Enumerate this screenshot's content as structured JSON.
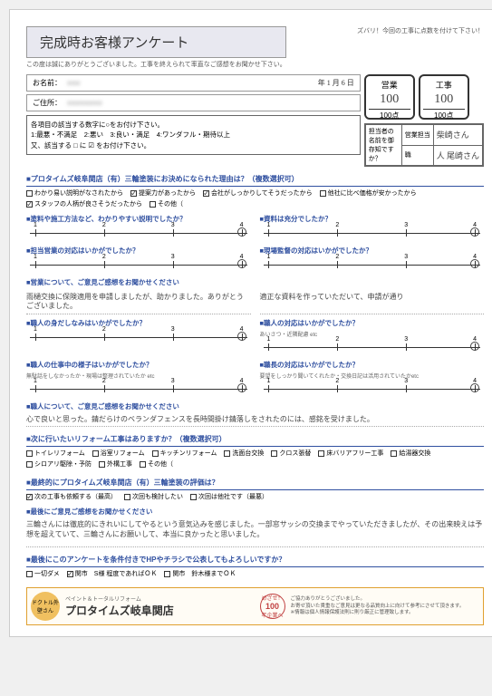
{
  "title": "完成時お客様アンケート",
  "subtitle": "この度は誠にありがとうございました。工事を終えられて率直なご感想をお聞かせ下さい。",
  "score_note": "ズバリ！今回の工事に点数を付けて下さい！",
  "name_label": "お名前：",
  "name_value": "●●●",
  "date_value": "年 1 月 6 日",
  "address_label": "ご住所：",
  "address_value": "●●●●●●●●",
  "score_sales": {
    "label": "営業",
    "score": "100",
    "denom": "100点"
  },
  "score_work": {
    "label": "工事",
    "score": "100",
    "denom": "100点"
  },
  "staff": {
    "header": "担当者の名前を御存知ですか？",
    "sales_label": "営業担当",
    "sales_name": "柴崎さん",
    "work_label": "職",
    "work_name": "人 尾崎さん"
  },
  "instructions": "各項目の該当する数字に○をお付け下さい。\n1:最悪・不満足　2:悪い　3:良い・満足　4:ワンダフル・期待以上\n又、該当する □ に ☑ をお付け下さい。",
  "q1": {
    "title": "■プロタイムズ岐阜関店（有）三輪塗装にお決めになられた理由は？（複数選択可）",
    "options": [
      {
        "text": "わかり易い説明がなされたから",
        "checked": false
      },
      {
        "text": "提案力があったから",
        "checked": true
      },
      {
        "text": "会社がしっかりしてそうだったから",
        "checked": true
      },
      {
        "text": "他社に比べ価格が安かったから",
        "checked": false
      },
      {
        "text": "スタッフの人柄が良さそうだったから",
        "checked": true
      },
      {
        "text": "その他（",
        "checked": false
      }
    ]
  },
  "scales": {
    "q2": {
      "title": "■塗料や施工方法など、わかりやすい説明でしたか？",
      "mark": 4
    },
    "q3": {
      "title": "■資料は充分でしたか？",
      "mark": 4
    },
    "q4": {
      "title": "■担当営業の対応はいかがでしたか？",
      "mark": 4
    },
    "q5": {
      "title": "■現場監督の対応はいかがでしたか？",
      "mark": 4
    },
    "q6": {
      "title": "■職人の身だしなみはいかがでしたか？",
      "mark": 4
    },
    "q7": {
      "title": "■職人の対応はいかがでしたか？",
      "sub": "あいさつ・近隣配慮 etc",
      "mark": 4
    },
    "q8": {
      "title": "■職人の仕事中の様子はいかがでしたか？",
      "sub": "無駄話をしなかったか・現場は整理されていたか etc",
      "mark": 4
    },
    "q9": {
      "title": "■職長の対応はいかがでしたか？",
      "sub": "要望をしっかり聞いてくれたか・交換日記は活用されていたかetc",
      "mark": 4
    }
  },
  "comment_sales": {
    "label": "■営業について、ご意見ご感想をお聞かせください",
    "left": "雨樋交換に保険適用を申請しましたが、助かりました。ありがとうございました。",
    "right": "適正な資料を作っていただいて、申請が通り"
  },
  "comment_worker": {
    "label": "■職人について、ご意見ご感想をお聞かせください",
    "text": "心で良いと思った。錆だらけのベランダフェンスを長時間掛け錆落しをされたのには、感銘を受けました。"
  },
  "q_reform": {
    "title": "■次に行いたいリフォーム工事はありますか？（複数選択可）",
    "options": [
      {
        "text": "トイレリフォーム"
      },
      {
        "text": "浴室リフォーム"
      },
      {
        "text": "キッチンリフォーム"
      },
      {
        "text": "洗面台交換"
      },
      {
        "text": "クロス張替"
      },
      {
        "text": "床バリアフリー工事"
      },
      {
        "text": "給湯器交換"
      },
      {
        "text": "シロアリ駆除・予防"
      },
      {
        "text": "外構工事"
      },
      {
        "text": "その他（"
      }
    ]
  },
  "q_final": {
    "title": "■最終的にプロタイムズ岐阜関店（有）三輪塗装の評価は？",
    "options": [
      {
        "text": "次の工事も依頼する（最高）",
        "checked": true
      },
      {
        "text": "次回も検討したい",
        "checked": false
      },
      {
        "text": "次回は他社です（最悪）",
        "checked": false
      }
    ]
  },
  "comment_final": {
    "label": "■最後にご意見ご感想をお聞かせください",
    "text": "三輪さんには徹底的にきれいにしてやるという意気込みを感じました。一部窓サッシの交換までやっていただきましたが、その出来映えは予想を超えていて、三輪さんにお願いして、本当に良かったと思いました。"
  },
  "q_publish": {
    "title": "■最後にこのアンケートを条件付きでHPやチラシで公表してもよろしいですか？",
    "options": [
      {
        "text": "一切ダメ",
        "checked": false
      },
      {
        "text": "関市　S様 程度であればＯＫ",
        "checked": true
      },
      {
        "text": "関市　鈴木様までＯＫ",
        "checked": false
      }
    ]
  },
  "footer": {
    "logo_text": "ドクトル外壁さん",
    "small": "ペイント＆トータルリフォーム",
    "brand": "プロタイムズ岐阜関店",
    "badge_top": "めざせ！",
    "badge_num": "100",
    "badge_sub": "年企業へ",
    "note": "ご協力ありがとうございました。\nお寄せ頂いた貴重なご意見は更なる品質向上に向けて参考にさせて頂きます。\n※情報は個人情報保護法則に則り厳正に管理致します。"
  },
  "colors": {
    "blue": "#3050a0",
    "header_bg": "#e8e8f0",
    "footer_border": "#e0a030"
  }
}
